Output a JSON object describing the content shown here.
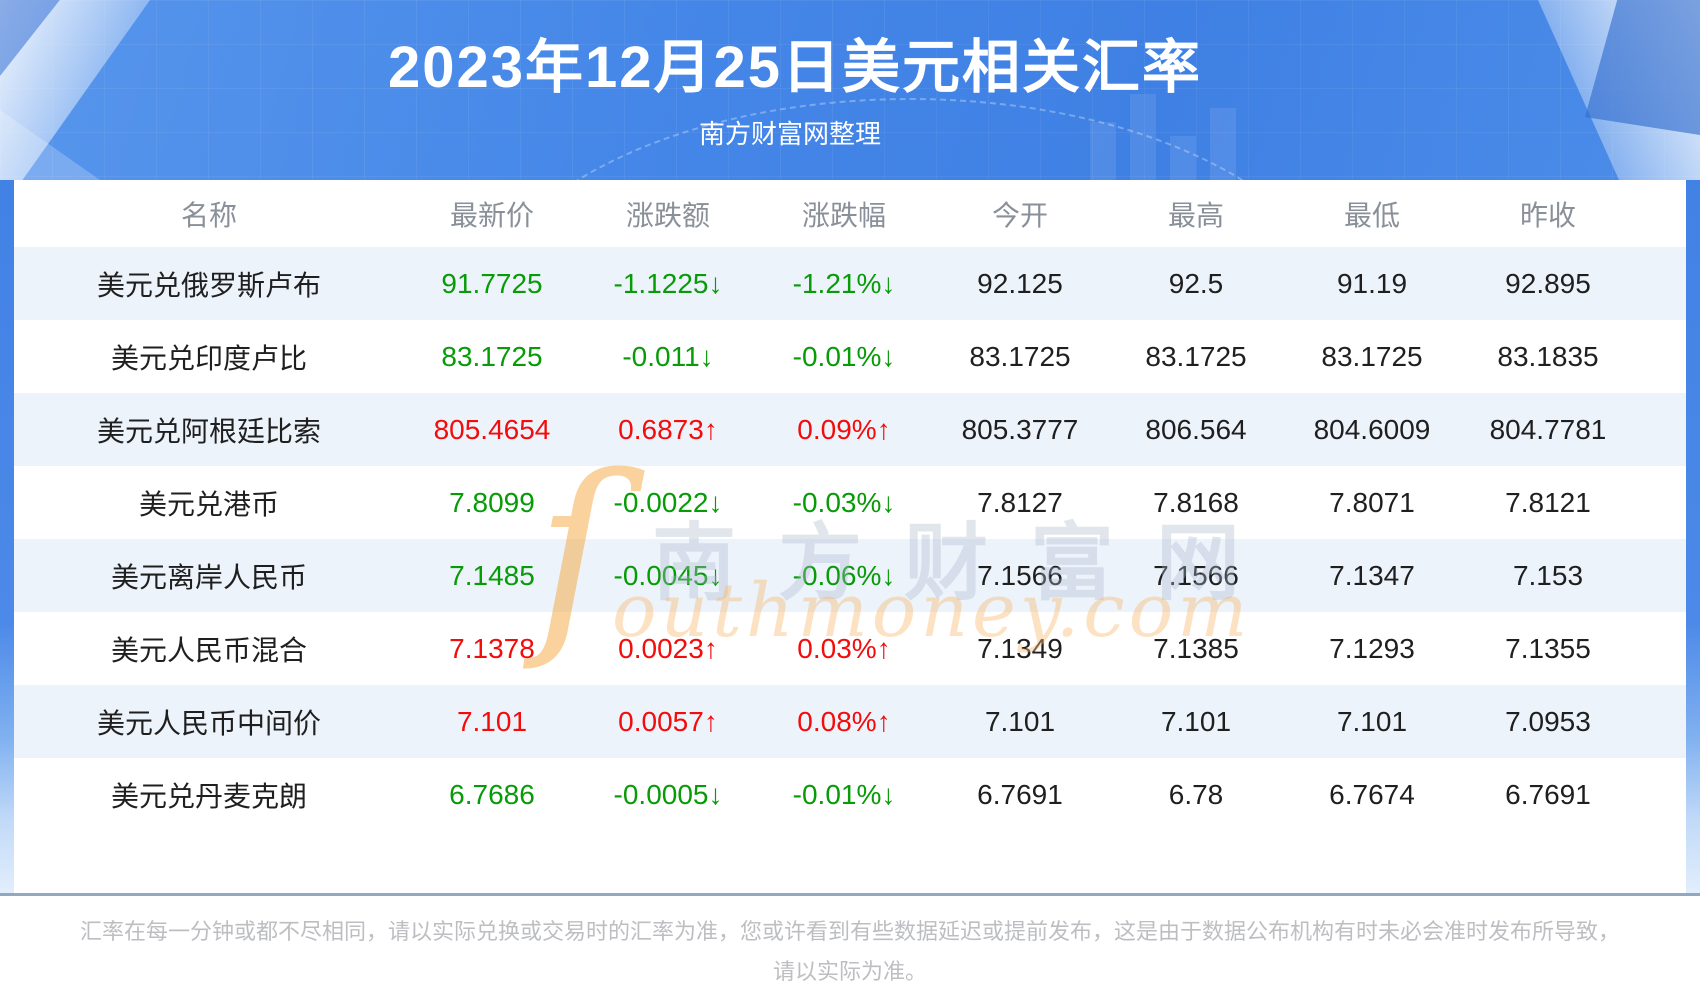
{
  "chart_data": {
    "type": "table",
    "title": "2023年12月25日美元相关汇率",
    "subtitle": "南方财富网整理",
    "columns": [
      "名称",
      "最新价",
      "涨跌额",
      "涨跌幅",
      "今开",
      "最高",
      "最低",
      "昨收"
    ],
    "rows": [
      {
        "name": "美元兑俄罗斯卢布",
        "latest": "91.7725",
        "change": "-1.1225↓",
        "change_pct": "-1.21%↓",
        "open": "92.125",
        "high": "92.5",
        "low": "91.19",
        "prev_close": "92.895",
        "trend": "down"
      },
      {
        "name": "美元兑印度卢比",
        "latest": "83.1725",
        "change": "-0.011↓",
        "change_pct": "-0.01%↓",
        "open": "83.1725",
        "high": "83.1725",
        "low": "83.1725",
        "prev_close": "83.1835",
        "trend": "down"
      },
      {
        "name": "美元兑阿根廷比索",
        "latest": "805.4654",
        "change": "0.6873↑",
        "change_pct": "0.09%↑",
        "open": "805.3777",
        "high": "806.564",
        "low": "804.6009",
        "prev_close": "804.7781",
        "trend": "up"
      },
      {
        "name": "美元兑港币",
        "latest": "7.8099",
        "change": "-0.0022↓",
        "change_pct": "-0.03%↓",
        "open": "7.8127",
        "high": "7.8168",
        "low": "7.8071",
        "prev_close": "7.8121",
        "trend": "down"
      },
      {
        "name": "美元离岸人民币",
        "latest": "7.1485",
        "change": "-0.0045↓",
        "change_pct": "-0.06%↓",
        "open": "7.1566",
        "high": "7.1566",
        "low": "7.1347",
        "prev_close": "7.153",
        "trend": "down"
      },
      {
        "name": "美元人民币混合",
        "latest": "7.1378",
        "change": "0.0023↑",
        "change_pct": "0.03%↑",
        "open": "7.1349",
        "high": "7.1385",
        "low": "7.1293",
        "prev_close": "7.1355",
        "trend": "up"
      },
      {
        "name": "美元人民币中间价",
        "latest": "7.101",
        "change": "0.0057↑",
        "change_pct": "0.08%↑",
        "open": "7.101",
        "high": "7.101",
        "low": "7.101",
        "prev_close": "7.0953",
        "trend": "up"
      },
      {
        "name": "美元兑丹麦克朗",
        "latest": "6.7686",
        "change": "-0.0005↓",
        "change_pct": "-0.01%↓",
        "open": "6.7691",
        "high": "6.78",
        "low": "6.7674",
        "prev_close": "6.7691",
        "trend": "down"
      }
    ],
    "legend_position": "none",
    "grid": false
  },
  "watermark": {
    "swoosh": "ſ",
    "cn": "南方财富网",
    "en": "outhmoney.com"
  },
  "footer": {
    "note_lines": [
      "汇率在每一分钟或都不尽相同，请以实际兑换或交易时的汇率为准，您或许看到有些数据延迟或提前发布，这是由于数据公布机构有时未必会准时发布所导致，",
      "请以实际为准。"
    ]
  },
  "colors": {
    "up_red": "#f40b0b",
    "down_green": "#089b08",
    "banner_blue": "#4587e8",
    "stripe_blue": "#edf3fb",
    "divider_gray_blue": "#90a8c2",
    "header_text_gray": "#8a9099",
    "footer_text_gray": "#bcbec1"
  }
}
